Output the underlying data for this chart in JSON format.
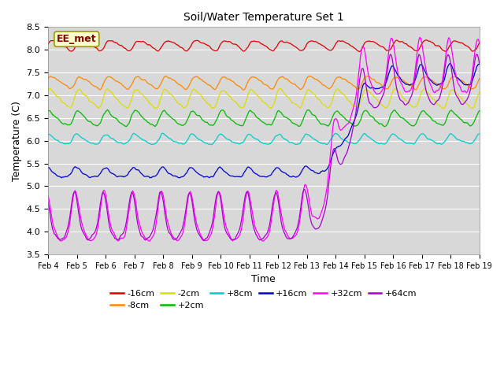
{
  "title": "Soil/Water Temperature Set 1",
  "xlabel": "Time",
  "ylabel": "Temperature (C)",
  "ylim": [
    3.5,
    8.5
  ],
  "xtick_labels": [
    "Feb 4",
    "Feb 5",
    "Feb 6",
    "Feb 7",
    "Feb 8",
    "Feb 9",
    "Feb 10",
    "Feb 11",
    "Feb 12",
    "Feb 13",
    "Feb 14",
    "Feb 15",
    "Feb 16",
    "Feb 17",
    "Feb 18",
    "Feb 19"
  ],
  "annotation_text": "EE_met",
  "background_color": "#d8d8d8",
  "fig_color": "#ffffff",
  "series": [
    {
      "label": "-16cm",
      "color": "#dd0000",
      "base_s": 8.1,
      "base_e": 8.25,
      "amp_s": 0.1,
      "amp_e": 0.12,
      "phase": 0.0,
      "noise": 0.015,
      "rise_day": 99
    },
    {
      "label": "-8cm",
      "color": "#ff8800",
      "base_s": 7.28,
      "base_e": 7.48,
      "amp_s": 0.12,
      "amp_e": 0.18,
      "phase": 0.3,
      "noise": 0.015,
      "rise_day": 99
    },
    {
      "label": "-2cm",
      "color": "#dddd00",
      "base_s": 6.92,
      "base_e": 7.1,
      "amp_s": 0.18,
      "amp_e": 0.25,
      "phase": 0.6,
      "noise": 0.02,
      "rise_day": 99
    },
    {
      "label": "+2cm",
      "color": "#00bb00",
      "base_s": 6.48,
      "base_e": 6.7,
      "amp_s": 0.15,
      "amp_e": 0.2,
      "phase": 0.9,
      "noise": 0.02,
      "rise_day": 99
    },
    {
      "label": "+8cm",
      "color": "#00cccc",
      "base_s": 6.02,
      "base_e": 6.3,
      "amp_s": 0.1,
      "amp_e": 0.15,
      "phase": 1.2,
      "noise": 0.015,
      "rise_day": 99
    },
    {
      "label": "+16cm",
      "color": "#0000cc",
      "base_s": 5.28,
      "base_e": 7.4,
      "amp_s": 0.1,
      "amp_e": 0.2,
      "phase": 1.5,
      "noise": 0.02,
      "rise_day": 10.5
    },
    {
      "label": "+32cm",
      "color": "#ff00ff",
      "base_s": 4.2,
      "base_e": 7.5,
      "amp_s": 0.5,
      "amp_e": 0.55,
      "phase": 1.8,
      "noise": 0.025,
      "rise_day": 10.0
    },
    {
      "label": "+64cm",
      "color": "#aa00cc",
      "base_s": 4.2,
      "base_e": 7.2,
      "amp_s": 0.48,
      "amp_e": 0.5,
      "phase": 2.1,
      "noise": 0.025,
      "rise_day": 10.2
    }
  ]
}
